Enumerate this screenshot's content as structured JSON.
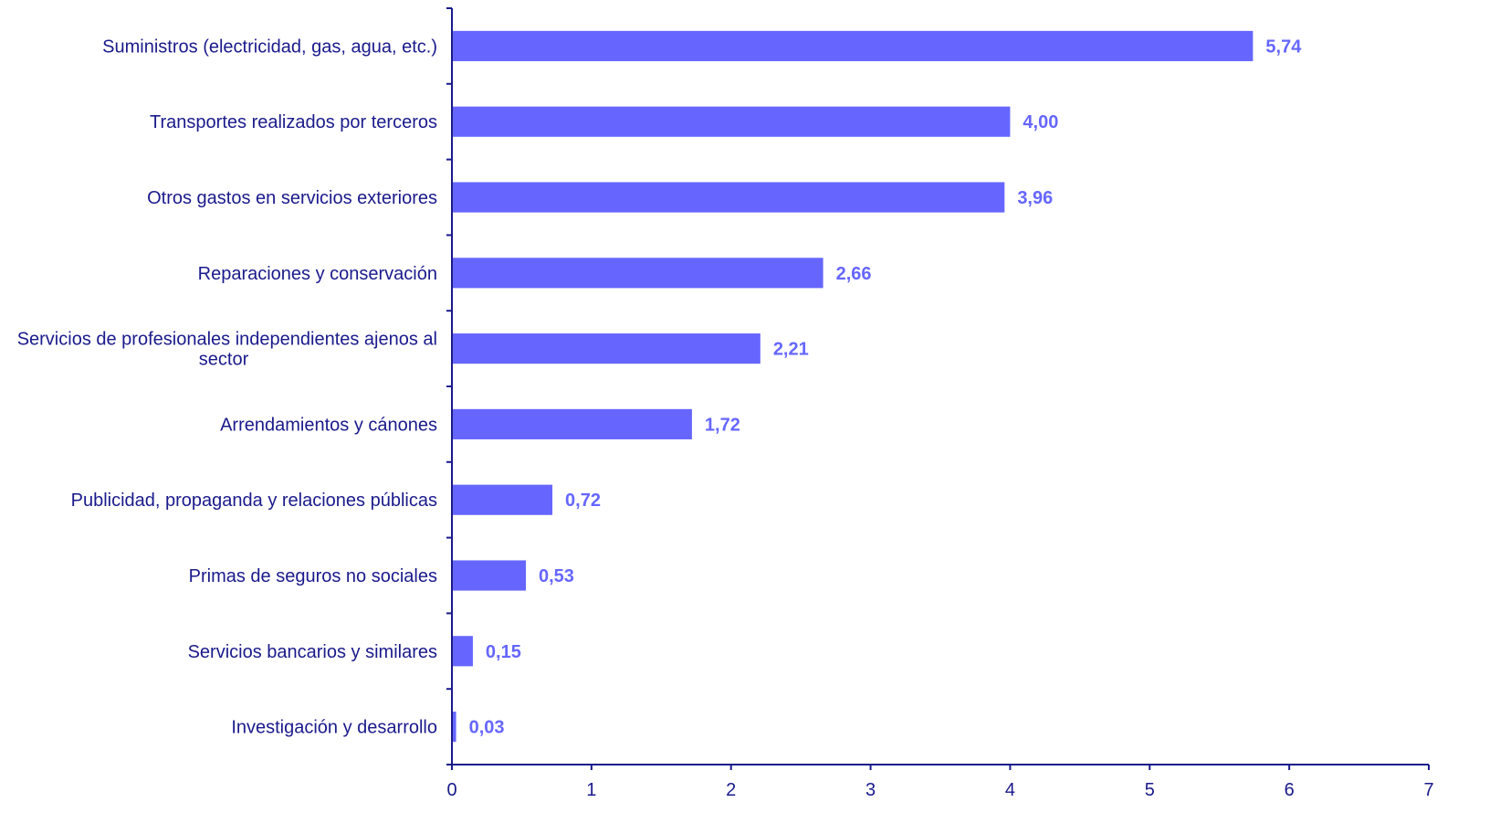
{
  "chart_data": {
    "type": "bar",
    "orientation": "horizontal",
    "title": "",
    "xlabel": "",
    "ylabel": "",
    "categories": [
      [
        "Suministros (electricidad, gas, agua, etc.)"
      ],
      [
        "Transportes realizados por terceros"
      ],
      [
        "Otros gastos en servicios exteriores"
      ],
      [
        "Reparaciones y conservación"
      ],
      [
        "Servicios de profesionales independientes ajenos al",
        "sector"
      ],
      [
        "Arrendamientos y cánones"
      ],
      [
        "Publicidad, propaganda y relaciones públicas"
      ],
      [
        "Primas de seguros no sociales"
      ],
      [
        "Servicios bancarios y similares"
      ],
      [
        "Investigación y desarrollo"
      ]
    ],
    "values": [
      5.74,
      4.0,
      3.96,
      2.66,
      2.21,
      1.72,
      0.72,
      0.53,
      0.15,
      0.03
    ],
    "value_labels": [
      "5,74",
      "4,00",
      "3,96",
      "2,66",
      "2,21",
      "1,72",
      "0,72",
      "0,53",
      "0,15",
      "0,03"
    ],
    "xlim": [
      0,
      7
    ],
    "xticks": [
      0,
      1,
      2,
      3,
      4,
      5,
      6,
      7
    ],
    "xtick_labels": [
      "0",
      "1",
      "2",
      "3",
      "4",
      "5",
      "6",
      "7"
    ],
    "grid": false,
    "legend": "none",
    "colors": {
      "bar": "#6666ff",
      "axis": "#1a1a8c",
      "category_text": "#1a1a8c",
      "value_text": "#6666ff"
    }
  }
}
